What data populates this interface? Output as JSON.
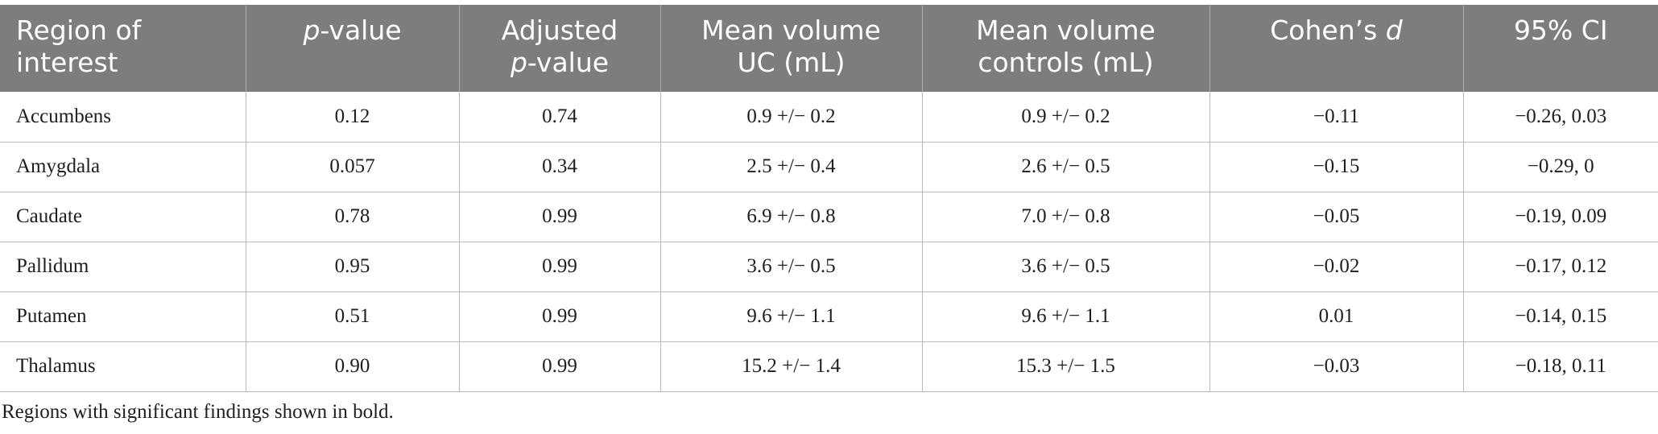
{
  "table": {
    "headers": [
      {
        "line1": "Region of",
        "line2": "interest"
      },
      {
        "italic": "p",
        "rest": "-value"
      },
      {
        "line1": "Adjusted",
        "italic": "p",
        "rest": "-value"
      },
      {
        "line1": "Mean volume",
        "line2": "UC (mL)"
      },
      {
        "line1": "Mean volume",
        "line2": "controls (mL)"
      },
      {
        "text": "Cohen’s ",
        "italic": "d"
      },
      {
        "text": "95% CI"
      }
    ],
    "rows": [
      [
        "Accumbens",
        "0.12",
        "0.74",
        "0.9 +/− 0.2",
        "0.9 +/− 0.2",
        "−0.11",
        "−0.26, 0.03"
      ],
      [
        "Amygdala",
        "0.057",
        "0.34",
        "2.5 +/− 0.4",
        "2.6 +/− 0.5",
        "−0.15",
        "−0.29, 0"
      ],
      [
        "Caudate",
        "0.78",
        "0.99",
        "6.9 +/− 0.8",
        "7.0 +/− 0.8",
        "−0.05",
        "−0.19, 0.09"
      ],
      [
        "Pallidum",
        "0.95",
        "0.99",
        "3.6 +/− 0.5",
        "3.6 +/− 0.5",
        "−0.02",
        "−0.17, 0.12"
      ],
      [
        "Putamen",
        "0.51",
        "0.99",
        "9.6 +/− 1.1",
        "9.6 +/− 1.1",
        "0.01",
        "−0.14, 0.15"
      ],
      [
        "Thalamus",
        "0.90",
        "0.99",
        "15.2 +/− 1.4",
        "15.3 +/− 1.5",
        "−0.03",
        "−0.18, 0.11"
      ]
    ]
  },
  "footnote": "Regions with significant findings shown in bold.",
  "colors": {
    "header_bg": "#7d7d7b",
    "header_text": "#ffffff",
    "grid_line": "#b9b9b9"
  }
}
